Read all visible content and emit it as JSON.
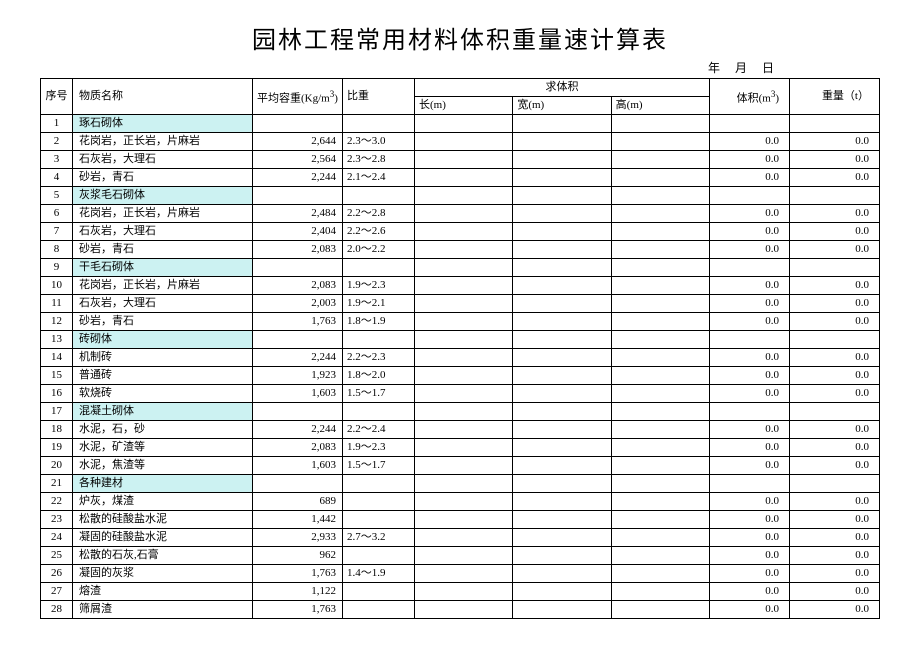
{
  "title": "园林工程常用材料体积重量速计算表",
  "date_label": "年 月 日",
  "headers": {
    "seq": "序号",
    "name": "物质名称",
    "density": "平均容重(Kg/m³)",
    "ratio": "比重",
    "dims_group": "求体积",
    "length": "长(m)",
    "width": "宽(m)",
    "height": "高(m)",
    "volume": "体积(m³)",
    "weight": "重量（t）"
  },
  "colors": {
    "category_bg": "#ccf2f2",
    "border": "#000000",
    "background": "#ffffff",
    "text": "#000000"
  },
  "rows": [
    {
      "seq": "1",
      "name": "琢石砌体",
      "cat": true
    },
    {
      "seq": "2",
      "name": "花岗岩，正长岩，片麻岩",
      "density": "2,644",
      "ratio": "2.3～3.0",
      "vol": "0.0",
      "wt": "0.0"
    },
    {
      "seq": "3",
      "name": "石灰岩，大理石",
      "density": "2,564",
      "ratio": "2.3～2.8",
      "vol": "0.0",
      "wt": "0.0"
    },
    {
      "seq": "4",
      "name": "砂岩，青石",
      "density": "2,244",
      "ratio": "2.1～2.4",
      "vol": "0.0",
      "wt": "0.0"
    },
    {
      "seq": "5",
      "name": "灰浆毛石砌体",
      "cat": true
    },
    {
      "seq": "6",
      "name": "花岗岩，正长岩，片麻岩",
      "density": "2,484",
      "ratio": "2.2～2.8",
      "vol": "0.0",
      "wt": "0.0"
    },
    {
      "seq": "7",
      "name": "石灰岩，大理石",
      "density": "2,404",
      "ratio": "2.2～2.6",
      "vol": "0.0",
      "wt": "0.0"
    },
    {
      "seq": "8",
      "name": "砂岩，青石",
      "density": "2,083",
      "ratio": "2.0～2.2",
      "vol": "0.0",
      "wt": "0.0"
    },
    {
      "seq": "9",
      "name": "干毛石砌体",
      "cat": true
    },
    {
      "seq": "10",
      "name": "花岗岩，正长岩，片麻岩",
      "density": "2,083",
      "ratio": "1.9～2.3",
      "vol": "0.0",
      "wt": "0.0"
    },
    {
      "seq": "11",
      "name": "石灰岩，大理石",
      "density": "2,003",
      "ratio": "1.9～2.1",
      "vol": "0.0",
      "wt": "0.0"
    },
    {
      "seq": "12",
      "name": "砂岩，青石",
      "density": "1,763",
      "ratio": "1.8～1.9",
      "vol": "0.0",
      "wt": "0.0"
    },
    {
      "seq": "13",
      "name": "砖砌体",
      "cat": true
    },
    {
      "seq": "14",
      "name": "机制砖",
      "density": "2,244",
      "ratio": "2.2～2.3",
      "vol": "0.0",
      "wt": "0.0"
    },
    {
      "seq": "15",
      "name": "普通砖",
      "density": "1,923",
      "ratio": "1.8～2.0",
      "vol": "0.0",
      "wt": "0.0"
    },
    {
      "seq": "16",
      "name": "软烧砖",
      "density": "1,603",
      "ratio": "1.5～1.7",
      "vol": "0.0",
      "wt": "0.0"
    },
    {
      "seq": "17",
      "name": "混凝土砌体",
      "cat": true
    },
    {
      "seq": "18",
      "name": "水泥，石，砂",
      "density": "2,244",
      "ratio": "2.2～2.4",
      "vol": "0.0",
      "wt": "0.0"
    },
    {
      "seq": "19",
      "name": "水泥，矿渣等",
      "density": "2,083",
      "ratio": "1.9～2.3",
      "vol": "0.0",
      "wt": "0.0"
    },
    {
      "seq": "20",
      "name": "水泥，焦渣等",
      "density": "1,603",
      "ratio": "1.5～1.7",
      "vol": "0.0",
      "wt": "0.0"
    },
    {
      "seq": "21",
      "name": "各种建材",
      "cat": true
    },
    {
      "seq": "22",
      "name": "炉灰，煤渣",
      "density": "689",
      "vol": "0.0",
      "wt": "0.0"
    },
    {
      "seq": "23",
      "name": "松散的硅酸盐水泥",
      "density": "1,442",
      "vol": "0.0",
      "wt": "0.0"
    },
    {
      "seq": "24",
      "name": "凝固的硅酸盐水泥",
      "density": "2,933",
      "ratio": "2.7～3.2",
      "vol": "0.0",
      "wt": "0.0"
    },
    {
      "seq": "25",
      "name": "松散的石灰,石膏",
      "density": "962",
      "vol": "0.0",
      "wt": "0.0"
    },
    {
      "seq": "26",
      "name": "凝固的灰浆",
      "density": "1,763",
      "ratio": "1.4～1.9",
      "vol": "0.0",
      "wt": "0.0"
    },
    {
      "seq": "27",
      "name": "熔渣",
      "density": "1,122",
      "vol": "0.0",
      "wt": "0.0"
    },
    {
      "seq": "28",
      "name": "筛屑渣",
      "density": "1,763",
      "vol": "0.0",
      "wt": "0.0"
    }
  ]
}
